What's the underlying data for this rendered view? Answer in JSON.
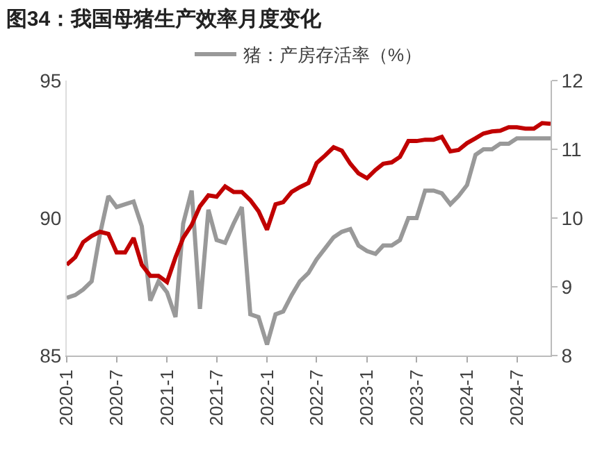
{
  "chart_data": {
    "type": "line",
    "title": "图34：我国母猪生产效率月度变化",
    "x": [
      "2020-01",
      "2020-02",
      "2020-03",
      "2020-04",
      "2020-05",
      "2020-06",
      "2020-07",
      "2020-08",
      "2020-09",
      "2020-10",
      "2020-11",
      "2020-12",
      "2021-01",
      "2021-02",
      "2021-03",
      "2021-04",
      "2021-05",
      "2021-06",
      "2021-07",
      "2021-08",
      "2021-09",
      "2021-10",
      "2021-11",
      "2021-12",
      "2022-01",
      "2022-02",
      "2022-03",
      "2022-04",
      "2022-05",
      "2022-06",
      "2022-07",
      "2022-08",
      "2022-09",
      "2022-10",
      "2022-11",
      "2022-12",
      "2023-01",
      "2023-02",
      "2023-03",
      "2023-04",
      "2023-05",
      "2023-06",
      "2023-07",
      "2023-08",
      "2023-09",
      "2023-10",
      "2023-11",
      "2023-12",
      "2024-01",
      "2024-02",
      "2024-03",
      "2024-04",
      "2024-05",
      "2024-06",
      "2024-07",
      "2024-08",
      "2024-09",
      "2024-10",
      "2024-11"
    ],
    "series": [
      {
        "name": "猪：产房存活率（%）",
        "color": "#999999",
        "values": [
          87.1,
          87.2,
          87.4,
          87.7,
          89.4,
          90.8,
          90.4,
          90.5,
          90.6,
          89.7,
          87.0,
          87.7,
          87.3,
          86.4,
          89.8,
          91.0,
          86.7,
          90.3,
          89.2,
          89.1,
          89.8,
          90.4,
          86.5,
          86.4,
          85.4,
          86.5,
          86.6,
          87.2,
          87.7,
          88.0,
          88.5,
          88.9,
          89.3,
          89.5,
          89.6,
          89.0,
          88.8,
          88.7,
          89.0,
          89.0,
          89.2,
          90.0,
          90.0,
          91.0,
          91.0,
          90.9,
          90.5,
          90.8,
          91.2,
          92.3,
          92.5,
          92.5,
          92.7,
          92.7,
          92.9,
          92.9,
          92.9,
          92.9,
          92.9
        ]
      },
      {
        "color": "#c00000",
        "axis": "y2",
        "values": [
          9.32,
          9.43,
          9.65,
          9.74,
          9.8,
          9.77,
          9.5,
          9.5,
          9.71,
          9.32,
          9.16,
          9.16,
          9.07,
          9.43,
          9.71,
          9.9,
          10.17,
          10.33,
          10.31,
          10.46,
          10.38,
          10.38,
          10.26,
          10.1,
          9.83,
          10.2,
          10.23,
          10.38,
          10.45,
          10.51,
          10.8,
          10.91,
          11.03,
          10.98,
          10.79,
          10.65,
          10.58,
          10.7,
          10.79,
          10.81,
          10.89,
          11.12,
          11.12,
          11.14,
          11.14,
          11.18,
          10.97,
          10.99,
          11.09,
          11.16,
          11.23,
          11.26,
          11.27,
          11.32,
          11.32,
          11.3,
          11.3,
          11.38,
          11.37
        ]
      }
    ],
    "xlim": [
      "2020-01",
      "2024-11"
    ],
    "xticks": [
      {
        "value": "2020-01",
        "label": "2020-1"
      },
      {
        "value": "2020-07",
        "label": "2020-7"
      },
      {
        "value": "2021-01",
        "label": "2021-1"
      },
      {
        "value": "2021-07",
        "label": "2021-7"
      },
      {
        "value": "2022-01",
        "label": "2022-1"
      },
      {
        "value": "2022-07",
        "label": "2022-7"
      },
      {
        "value": "2023-01",
        "label": "2023-1"
      },
      {
        "value": "2023-07",
        "label": "2023-7"
      },
      {
        "value": "2024-01",
        "label": "2024-1"
      },
      {
        "value": "2024-07",
        "label": "2024-7"
      }
    ],
    "ylim": [
      85,
      95
    ],
    "yticks": [
      85,
      90,
      95
    ],
    "y2lim": [
      8,
      12
    ],
    "y2ticks": [
      8,
      9,
      10,
      11,
      12
    ],
    "legend": "top",
    "grid": false,
    "marker": "none",
    "line_style": "solid"
  }
}
